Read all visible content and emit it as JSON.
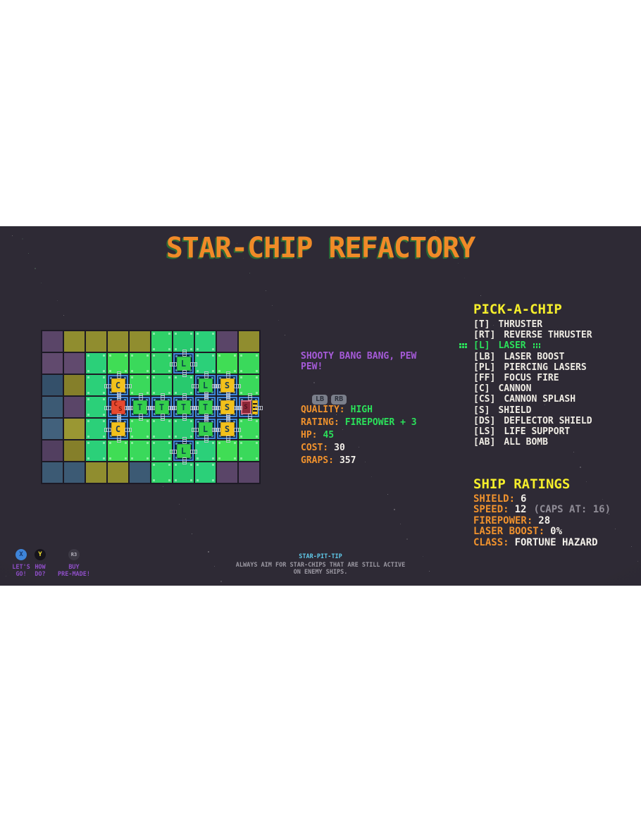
{
  "title": "STAR-CHIP REFACTORY",
  "chip_info": {
    "flavor_text": "SHOOTY BANG BANG, PEW PEW!",
    "shoulder_buttons": [
      "LB",
      "RB"
    ],
    "stats": [
      {
        "label": "QUALITY:",
        "value": "HIGH",
        "tone": "green"
      },
      {
        "label": "RATING:",
        "value": "FIREPOWER + 3",
        "tone": "green"
      },
      {
        "label": "HP:",
        "value": "45",
        "tone": "green"
      },
      {
        "label": "COST:",
        "value": "30",
        "tone": "white"
      },
      {
        "label": "GRAPS:",
        "value": "357",
        "tone": "white"
      }
    ]
  },
  "pick_a_chip": {
    "title": "PICK-A-CHIP",
    "items": [
      {
        "key": "[T]",
        "label": "THRUSTER",
        "selected": false
      },
      {
        "key": "[RT]",
        "label": "REVERSE THRUSTER",
        "selected": false
      },
      {
        "key": "[L]",
        "label": "LASER",
        "selected": true
      },
      {
        "key": "[LB]",
        "label": "LASER BOOST",
        "selected": false
      },
      {
        "key": "[PL]",
        "label": "PIERCING LASERS",
        "selected": false
      },
      {
        "key": "[FF]",
        "label": "FOCUS FIRE",
        "selected": false
      },
      {
        "key": "[C]",
        "label": "CANNON",
        "selected": false
      },
      {
        "key": "[CS]",
        "label": "CANNON SPLASH",
        "selected": false
      },
      {
        "key": "[S]",
        "label": "SHIELD",
        "selected": false
      },
      {
        "key": "[DS]",
        "label": "DEFLECTOR SHIELD",
        "selected": false
      },
      {
        "key": "[LS]",
        "label": "LIFE SUPPORT",
        "selected": false
      },
      {
        "key": "[AB]",
        "label": "ALL BOMB",
        "selected": false
      }
    ]
  },
  "ship_ratings": {
    "title": "SHIP RATINGS",
    "rows": [
      {
        "label": "SHIELD:",
        "value": "6",
        "note": ""
      },
      {
        "label": "SPEED:",
        "value": "12",
        "note": "(CAPS AT: 16)"
      },
      {
        "label": "FIREPOWER:",
        "value": "28",
        "note": ""
      },
      {
        "label": "LASER BOOST:",
        "value": "0%",
        "note": ""
      },
      {
        "label": "CLASS:",
        "value": "FORTUNE HAZARD",
        "note": ""
      }
    ]
  },
  "footer": {
    "tip_title": "STAR-PIT-TIP",
    "tip_line1": "ALWAYS AIM FOR STAR-CHIPS THAT ARE STILL ACTIVE",
    "tip_line2": "ON ENEMY SHIPS.",
    "buttons": [
      {
        "glyph": "X",
        "style": "x",
        "lines": [
          "LET'S",
          "GO!"
        ],
        "name": "lets-go-button"
      },
      {
        "glyph": "Y",
        "style": "y",
        "lines": [
          "HOW",
          "DO?"
        ],
        "name": "how-do-button"
      },
      {
        "glyph": "R3",
        "style": "r3",
        "lines": [
          "BUY",
          "PRE-MADE!"
        ],
        "name": "buy-premade-button"
      }
    ]
  },
  "grid": {
    "columns": 10,
    "rows": 7,
    "cells": [
      [
        "pu",
        "ol",
        "ol",
        "ol",
        "ol",
        "gr",
        "gr",
        "gr",
        "pu",
        "ol"
      ],
      [
        "pu",
        "pu",
        "gr",
        "gr",
        "gr",
        "gr",
        "c:L",
        "gr",
        "gr",
        "gr"
      ],
      [
        "te",
        "ol",
        "gr",
        "c:C",
        "gr",
        "gr",
        "gr",
        "c:L",
        "c:S",
        "gr"
      ],
      [
        "te",
        "pu",
        "gr",
        "c:CS",
        "c:T",
        "c:T",
        "c:T",
        "c:T",
        "c:S",
        "ship"
      ],
      [
        "te",
        "ol",
        "gr",
        "c:C",
        "gr",
        "gr",
        "gr",
        "c:L",
        "c:S",
        "gr"
      ],
      [
        "pu",
        "ol",
        "gr",
        "gr",
        "gr",
        "gr",
        "c:L",
        "gr",
        "gr",
        "gr"
      ],
      [
        "te",
        "te",
        "ol",
        "ol",
        "te",
        "gr",
        "gr",
        "gr",
        "pu",
        "pu"
      ]
    ],
    "ship_core_letter": "S"
  },
  "colors": {
    "background": "#2e2a35",
    "title_orange": "#f08a28",
    "heading_yellow": "#f5ee2b",
    "label_orange": "#f0922d",
    "value_green": "#2be05a",
    "text_white": "#f2efe9",
    "flavor_purple": "#a55ad8",
    "tip_cyan": "#5fc8e8",
    "tip_gray": "#9b98a2",
    "note_gray": "#8f8c96",
    "button_label_purple": "#8e4ec6",
    "tile_purple": "#5a4568",
    "tile_olive": "#908d2f",
    "tile_teal": "#3c5a74",
    "tile_green": "#2fd168",
    "circuit_blue_border": "#3f86d6",
    "circuit_blue_fill": "#16365c",
    "chip_yellow": "#f2c11c",
    "chip_green": "#35cf4c",
    "chip_red": "#e6492f"
  }
}
